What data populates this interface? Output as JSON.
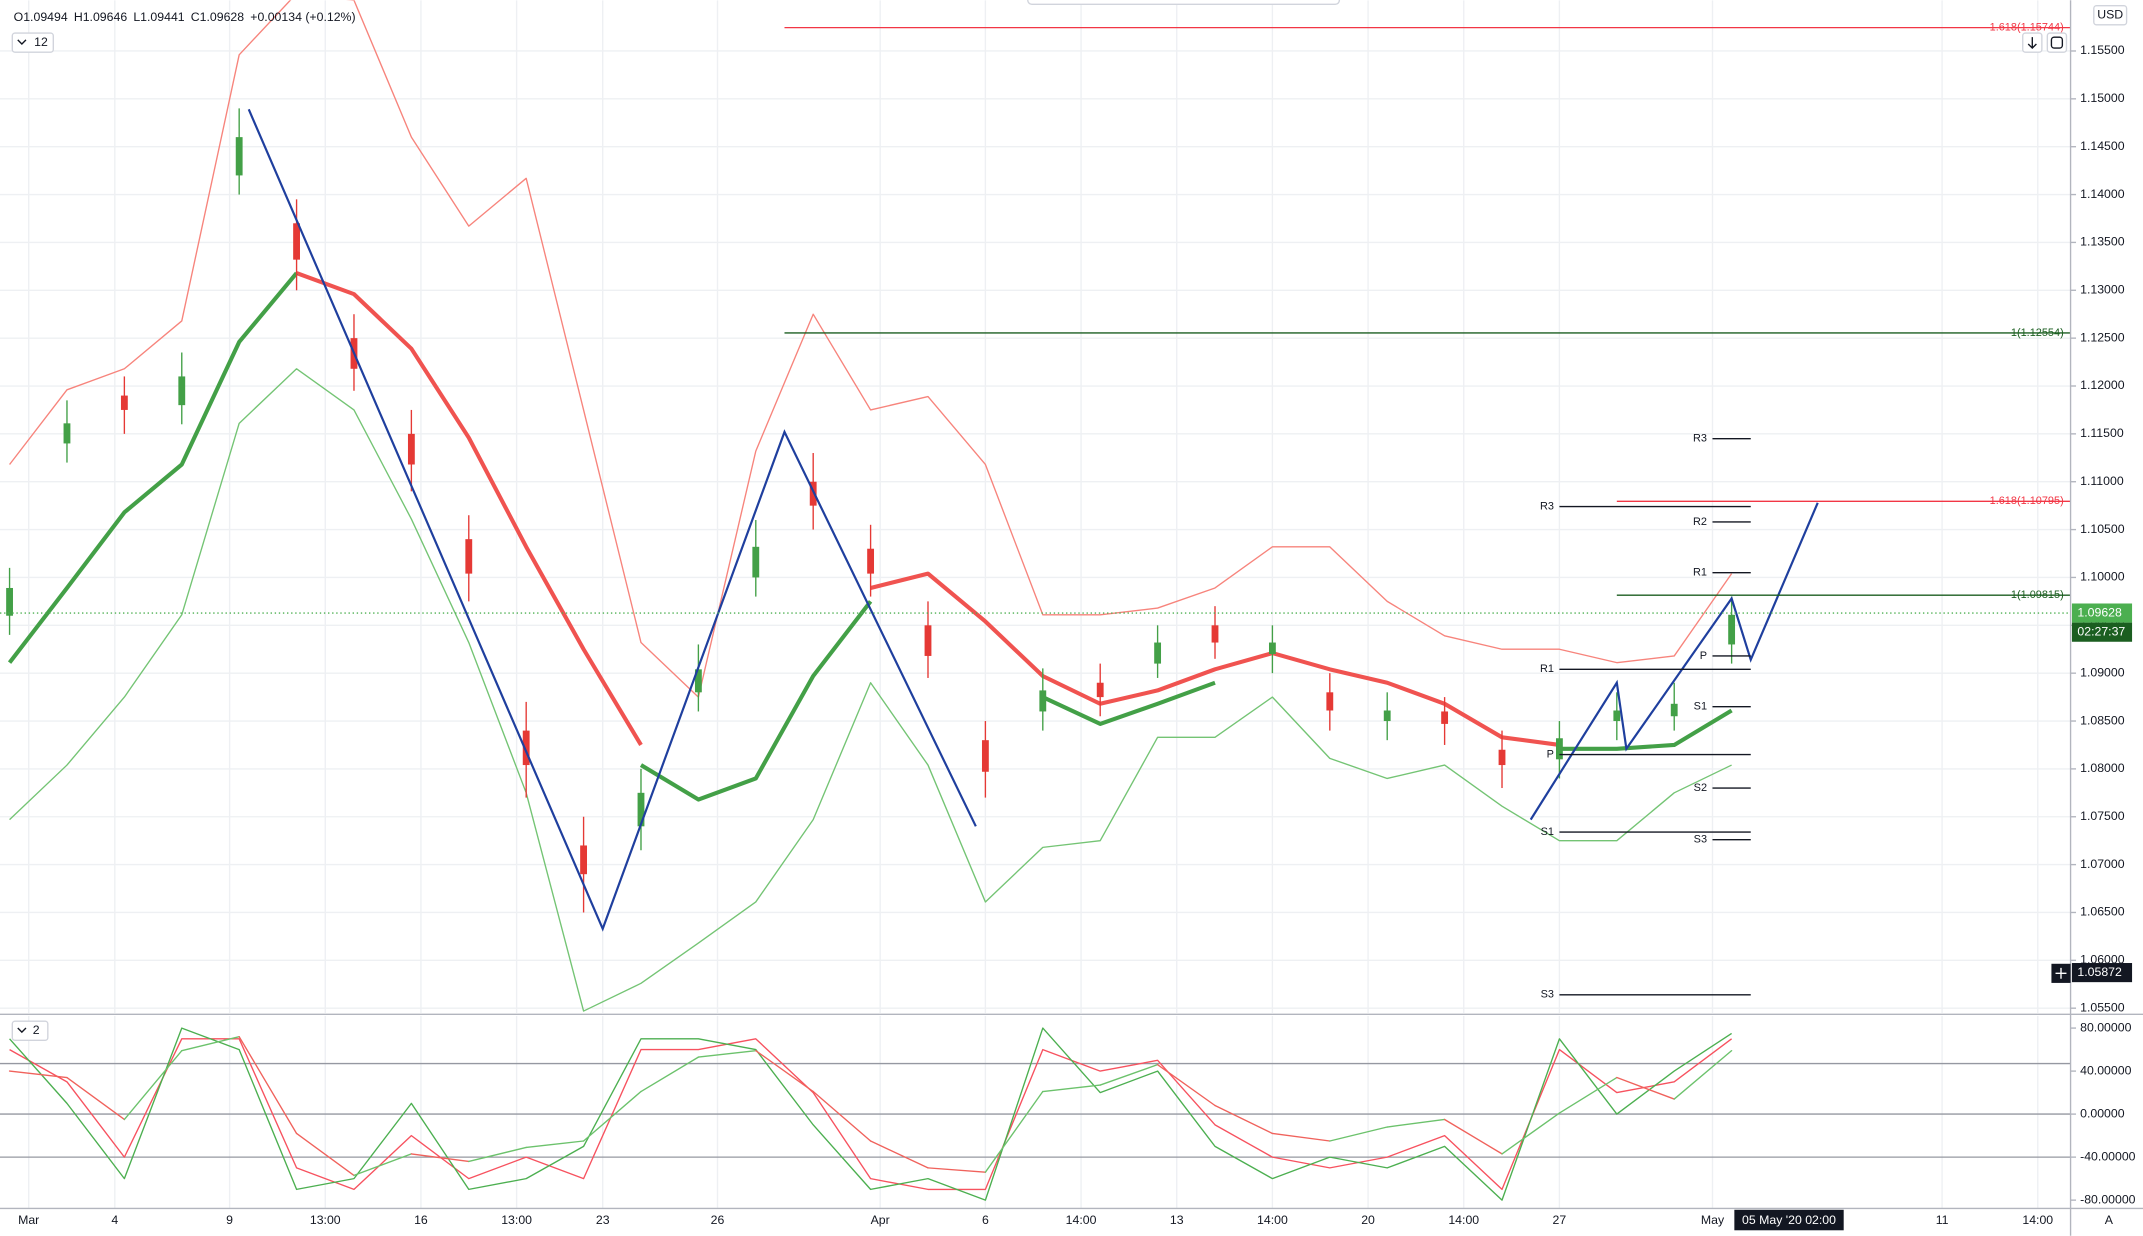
{
  "toolbar": {
    "ohlc": [
      "O1.09494",
      "H1.09646",
      "L1.09441",
      "C1.09628",
      "+0.00134 (+0.12%)"
    ],
    "interval": "12",
    "currency": "USD",
    "scale_button": "A"
  },
  "chart_data": [
    {
      "type": "candlestick",
      "x": [
        0,
        6,
        12,
        18,
        24,
        30,
        36,
        42,
        48,
        54,
        60,
        66,
        72,
        78,
        84,
        90,
        96,
        102,
        108,
        114,
        120,
        126,
        132,
        138,
        144,
        150,
        156,
        162,
        168,
        174,
        180
      ],
      "open": [
        1.096,
        1.114,
        1.119,
        1.118,
        1.142,
        1.137,
        1.125,
        1.115,
        1.104,
        1.084,
        1.072,
        1.074,
        1.088,
        1.1,
        1.11,
        1.103,
        1.095,
        1.083,
        1.086,
        1.089,
        1.091,
        1.095,
        1.092,
        1.088,
        1.085,
        1.086,
        1.082,
        1.081,
        1.085,
        1.0855,
        1.093
      ],
      "high": [
        1.101,
        1.1185,
        1.121,
        1.1235,
        1.149,
        1.1395,
        1.1275,
        1.1175,
        1.1065,
        1.087,
        1.075,
        1.08,
        1.093,
        1.106,
        1.113,
        1.1055,
        1.0975,
        1.085,
        1.0905,
        1.091,
        1.095,
        1.097,
        1.095,
        1.09,
        1.088,
        1.0875,
        1.084,
        1.085,
        1.088,
        1.089,
        1.098
      ],
      "low": [
        1.094,
        1.112,
        1.115,
        1.116,
        1.14,
        1.13,
        1.1195,
        1.109,
        1.0975,
        1.077,
        1.065,
        1.0715,
        1.086,
        1.098,
        1.105,
        1.098,
        1.0895,
        1.077,
        1.084,
        1.0855,
        1.0895,
        1.0915,
        1.09,
        1.084,
        1.083,
        1.0825,
        1.078,
        1.079,
        1.083,
        1.084,
        1.091
      ],
      "close": [
        1.0989,
        1.1161,
        1.1175,
        1.121,
        1.146,
        1.1332,
        1.1218,
        1.1118,
        1.1004,
        1.0804,
        1.069,
        1.0775,
        1.0904,
        1.1032,
        1.1075,
        1.1004,
        1.0918,
        1.0797,
        1.0882,
        1.0875,
        1.0932,
        1.0932,
        1.0932,
        1.0861,
        1.0861,
        1.0847,
        1.0804,
        1.0832,
        1.0861,
        1.0868,
        1.0961
      ],
      "up_color": "#43a047",
      "down_color": "#e53935",
      "series": [
        {
          "color": "#f7847c",
          "width": 1,
          "values": [
            1.1118,
            1.1196,
            1.1218,
            1.1268,
            1.1546,
            1.161,
            1.1603,
            1.146,
            1.1367,
            1.1417,
            1.1175,
            1.0932,
            1.0875,
            1.1132,
            1.1275,
            1.1175,
            1.1189,
            1.1118,
            1.0961,
            1.0961,
            1.0968,
            1.0989,
            1.1032,
            1.1032,
            1.0975,
            1.0939,
            1.0925,
            1.0925,
            1.0911,
            1.0918,
            1.1004
          ]
        },
        {
          "color": "#74c474",
          "width": 1,
          "values": [
            1.0747,
            1.0804,
            1.0875,
            1.0961,
            1.1161,
            1.1218,
            1.1175,
            1.1061,
            1.0932,
            1.0775,
            1.0547,
            1.0576,
            1.0618,
            1.0661,
            1.0747,
            1.089,
            1.0804,
            1.0661,
            1.0718,
            1.0725,
            1.0833,
            1.0833,
            1.0875,
            1.0811,
            1.079,
            1.0804,
            1.0761,
            1.0725,
            1.0725,
            1.0775,
            1.0804
          ]
        },
        {
          "color": "#f05350",
          "width": 3,
          "values": [
            null,
            null,
            null,
            null,
            null,
            1.1318,
            1.1296,
            1.1239,
            1.1146,
            1.1032,
            1.0925,
            1.0825,
            null,
            null,
            null,
            1.0989,
            1.1004,
            1.0954,
            1.0897,
            1.0868,
            1.0882,
            1.0904,
            1.0921,
            1.0904,
            1.089,
            1.0868,
            1.0833,
            1.0825,
            null,
            null,
            null
          ]
        },
        {
          "color": "#43a047",
          "width": 3,
          "values": [
            1.0911,
            1.0989,
            1.1068,
            1.1118,
            1.1246,
            1.1318,
            null,
            null,
            null,
            null,
            null,
            1.0804,
            1.0768,
            1.079,
            1.0897,
            1.0975,
            null,
            null,
            1.0875,
            1.0847,
            1.0868,
            1.089,
            null,
            null,
            null,
            null,
            null,
            1.0821,
            1.0821,
            1.0825,
            1.0861
          ]
        }
      ],
      "zigzag": {
        "color": "#1f3f9e",
        "segments": [
          {
            "x": [
              25,
              62,
              81,
              101
            ],
            "values": [
              1.1489,
              1.0633,
              1.1152,
              1.074
            ]
          },
          {
            "x": [
              159,
              168,
              169,
              180,
              182,
              189
            ],
            "values": [
              1.0747,
              1.089,
              1.0821,
              1.0978,
              1.0914,
              1.1078
            ]
          }
        ]
      },
      "fib_levels": [
        {
          "label": "1.618(1.15744)",
          "value": 1.15744,
          "x_start": 81,
          "color": "#f23645"
        },
        {
          "label": "1(1.12554)",
          "value": 1.12554,
          "x_start": 81,
          "color": "#1b5e20"
        },
        {
          "label": "1.618(1.10795)",
          "value": 1.10795,
          "x_start": 168,
          "color": "#f23645"
        },
        {
          "label": "1(1.09815)",
          "value": 1.09815,
          "x_start": 168,
          "color": "#1b5e20"
        }
      ],
      "pivots": [
        {
          "x_start": 162,
          "x_end": 182,
          "levels": [
            {
              "label": "R3",
              "value": 1.1074
            },
            {
              "label": "R1",
              "value": 1.0904
            },
            {
              "label": "P",
              "value": 1.0815
            },
            {
              "label": "S1",
              "value": 1.0734
            },
            {
              "label": "S3",
              "value": 1.0564
            }
          ]
        },
        {
          "x_start": 178,
          "x_end": 182,
          "levels": [
            {
              "label": "R3",
              "value": 1.1145
            },
            {
              "label": "R2",
              "value": 1.1058
            },
            {
              "label": "R1",
              "value": 1.1005
            },
            {
              "label": "P",
              "value": 1.0918
            },
            {
              "label": "S1",
              "value": 1.0865
            },
            {
              "label": "S2",
              "value": 1.078
            },
            {
              "label": "S3",
              "value": 1.0726
            }
          ]
        }
      ],
      "last_price": {
        "value": 1.09628,
        "countdown": "02:27:37",
        "color": "#4caf50"
      },
      "crosshair": {
        "x": 186,
        "x_label": "05 May '20 02:00",
        "y": 1.05872
      },
      "xlim": [
        -1,
        215
      ],
      "ylim": [
        1.0545,
        1.1603
      ],
      "xticks": [
        {
          "value": 2,
          "label": "Mar"
        },
        {
          "value": 11,
          "label": "4"
        },
        {
          "value": 23,
          "label": "9"
        },
        {
          "value": 33,
          "label": "13:00"
        },
        {
          "value": 43,
          "label": "16"
        },
        {
          "value": 53,
          "label": "13:00"
        },
        {
          "value": 62,
          "label": "23"
        },
        {
          "value": 74,
          "label": "26"
        },
        {
          "value": 91,
          "label": "Apr"
        },
        {
          "value": 102,
          "label": "6"
        },
        {
          "value": 112,
          "label": "14:00"
        },
        {
          "value": 122,
          "label": "13"
        },
        {
          "value": 132,
          "label": "14:00"
        },
        {
          "value": 142,
          "label": "20"
        },
        {
          "value": 152,
          "label": "14:00"
        },
        {
          "value": 162,
          "label": "27"
        },
        {
          "value": 178,
          "label": "May"
        },
        {
          "value": 202,
          "label": "11"
        },
        {
          "value": 212,
          "label": "14:00"
        }
      ],
      "yticks": [
        {
          "value": 1.055,
          "label": "1.05500"
        },
        {
          "value": 1.06,
          "label": "1.06000"
        },
        {
          "value": 1.065,
          "label": "1.06500"
        },
        {
          "value": 1.07,
          "label": "1.07000"
        },
        {
          "value": 1.075,
          "label": "1.07500"
        },
        {
          "value": 1.08,
          "label": "1.08000"
        },
        {
          "value": 1.085,
          "label": "1.08500"
        },
        {
          "value": 1.09,
          "label": "1.09000"
        },
        {
          "value": 1.095,
          "label": "1.09500"
        },
        {
          "value": 1.1,
          "label": "1.10000"
        },
        {
          "value": 1.105,
          "label": "1.10500"
        },
        {
          "value": 1.11,
          "label": "1.11000"
        },
        {
          "value": 1.115,
          "label": "1.11500"
        },
        {
          "value": 1.12,
          "label": "1.12000"
        },
        {
          "value": 1.125,
          "label": "1.12500"
        },
        {
          "value": 1.13,
          "label": "1.13000"
        },
        {
          "value": 1.135,
          "label": "1.13500"
        },
        {
          "value": 1.14,
          "label": "1.14000"
        },
        {
          "value": 1.145,
          "label": "1.14500"
        },
        {
          "value": 1.15,
          "label": "1.15000"
        },
        {
          "value": 1.155,
          "label": "1.15500"
        }
      ],
      "grid": true
    },
    {
      "type": "line",
      "pane_label": "2",
      "x": [
        0,
        6,
        12,
        18,
        24,
        30,
        36,
        42,
        48,
        54,
        60,
        66,
        72,
        78,
        84,
        90,
        96,
        102,
        108,
        114,
        120,
        126,
        132,
        138,
        144,
        150,
        156,
        162,
        168,
        174,
        180
      ],
      "series": [
        {
          "color": "#f7525f",
          "width": 1,
          "values": [
            60,
            30,
            -40,
            70,
            70,
            -50,
            -70,
            -20,
            -60,
            -40,
            -60,
            60,
            60,
            70,
            20,
            -60,
            -70,
            -70,
            60,
            40,
            50,
            -10,
            -40,
            -50,
            -40,
            -20,
            -70,
            60,
            20,
            30,
            70
          ]
        },
        {
          "color": "#4caf50",
          "width": 1,
          "values": [
            70,
            10,
            -60,
            80,
            60,
            -70,
            -60,
            10,
            -70,
            -60,
            -30,
            70,
            70,
            60,
            -10,
            -70,
            -60,
            -80,
            80,
            20,
            40,
            -30,
            -60,
            -40,
            -50,
            -30,
            -80,
            70,
            0,
            40,
            75
          ]
        },
        {
          "up_color": "#6cc26c",
          "down_color": "#f0625c",
          "width": 3,
          "values": [
            40,
            34,
            -5,
            59,
            72,
            -18,
            -57,
            -37,
            -44,
            -31,
            -25,
            21,
            53,
            59,
            21,
            -25,
            -50,
            -54,
            21,
            27,
            46,
            8,
            -18,
            -25,
            -12,
            -5,
            -37,
            1,
            34,
            14,
            59
          ]
        }
      ],
      "levels": [
        47,
        0,
        -40
      ],
      "xlim": [
        -1,
        215
      ],
      "ylim": [
        -87.7,
        91.5
      ],
      "yticks": [
        {
          "value": -80,
          "label": "-80.00000"
        },
        {
          "value": -40,
          "label": "-40.00000"
        },
        {
          "value": 0,
          "label": "0.00000"
        },
        {
          "value": 40,
          "label": "40.00000"
        },
        {
          "value": 80,
          "label": "80.00000"
        }
      ]
    }
  ]
}
